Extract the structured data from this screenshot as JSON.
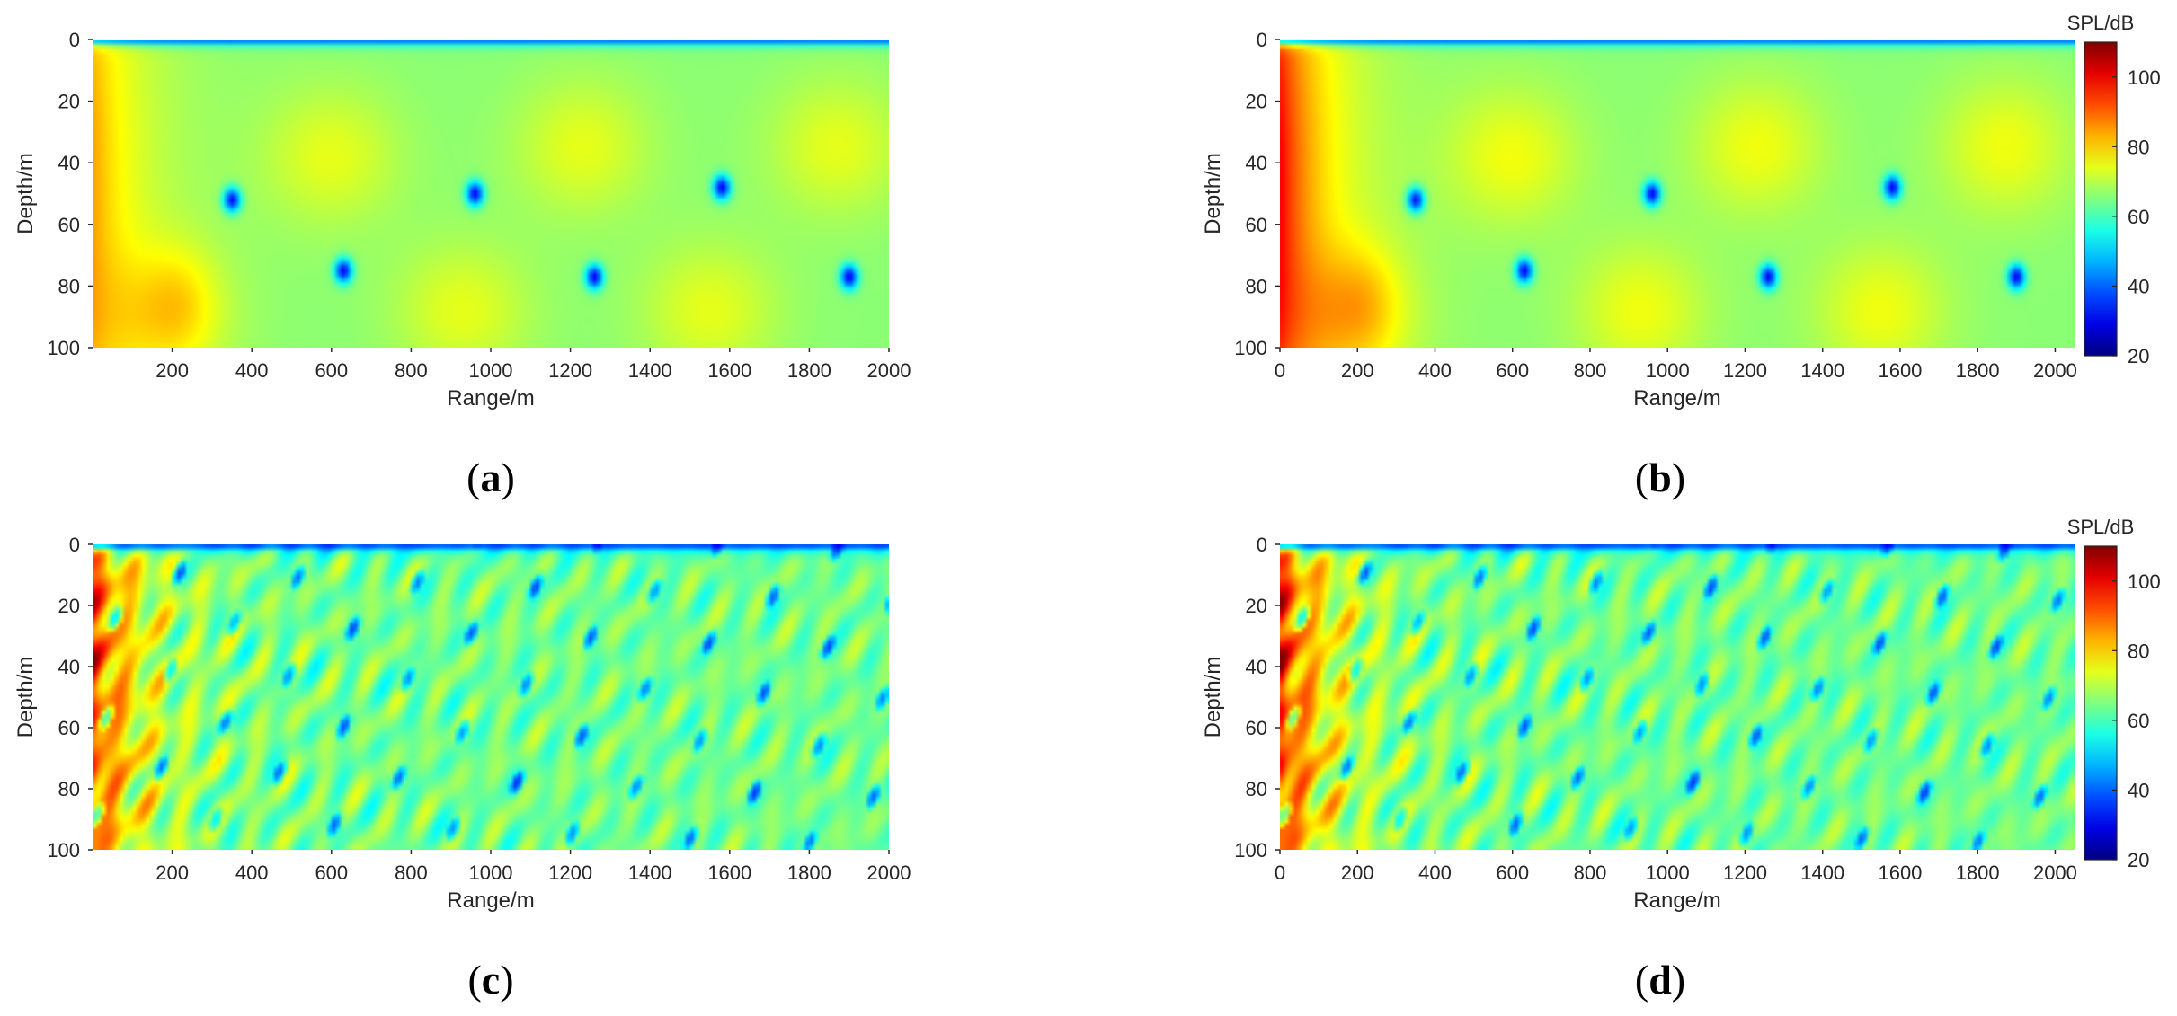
{
  "chart_data": [
    {
      "type": "heatmap",
      "panel": "a",
      "caption_open": "(",
      "caption_letter": "a",
      "caption_close": ")",
      "xlabel": "Range/m",
      "ylabel": "Depth/m",
      "xlim": [
        0,
        2000
      ],
      "ylim": [
        0,
        100
      ],
      "y_reversed": true,
      "xticks": [
        "200",
        "400",
        "600",
        "800",
        "1000",
        "1200",
        "1400",
        "1600",
        "1800",
        "2000"
      ],
      "yticks": [
        "0",
        "20",
        "40",
        "60",
        "80",
        "100"
      ],
      "colorbar": false,
      "pattern": "smooth",
      "summary_values_dB": {
        "near_source_max": 85,
        "background": 66,
        "high_lobes": 74,
        "nulls": 30,
        "surface": 25
      },
      "high_lobes": [
        {
          "range": 600,
          "depth": 38
        },
        {
          "range": 1230,
          "depth": 35
        },
        {
          "range": 1870,
          "depth": 35
        },
        {
          "range": 930,
          "depth": 88
        },
        {
          "range": 1550,
          "depth": 88
        },
        {
          "range": 170,
          "depth": 90
        }
      ],
      "nulls": [
        {
          "range": 960,
          "depth": 50
        },
        {
          "range": 1580,
          "depth": 48
        },
        {
          "range": 630,
          "depth": 75
        },
        {
          "range": 1260,
          "depth": 77
        },
        {
          "range": 1900,
          "depth": 77
        },
        {
          "range": 350,
          "depth": 52
        }
      ]
    },
    {
      "type": "heatmap",
      "panel": "b",
      "caption_open": "(",
      "caption_letter": "b",
      "caption_close": ")",
      "xlabel": "Range/m",
      "ylabel": "Depth/m",
      "xlim": [
        0,
        2050
      ],
      "ylim": [
        0,
        100
      ],
      "y_reversed": true,
      "xticks": [
        "0",
        "200",
        "400",
        "600",
        "800",
        "1000",
        "1200",
        "1400",
        "1600",
        "1800",
        "2000"
      ],
      "yticks": [
        "0",
        "20",
        "40",
        "60",
        "80",
        "100"
      ],
      "colorbar": true,
      "colorbar_title": "SPL/dB",
      "colorbar_ticks": [
        "100",
        "80",
        "60",
        "40",
        "20"
      ],
      "clim": [
        20,
        110
      ],
      "pattern": "smooth",
      "summary_values_dB": {
        "near_source_max": 100,
        "background": 66,
        "high_lobes": 75,
        "nulls": 30,
        "surface": 25
      },
      "high_lobes": [
        {
          "range": 600,
          "depth": 38
        },
        {
          "range": 1230,
          "depth": 35
        },
        {
          "range": 1870,
          "depth": 35
        },
        {
          "range": 930,
          "depth": 88
        },
        {
          "range": 1550,
          "depth": 88
        },
        {
          "range": 170,
          "depth": 90
        }
      ],
      "nulls": [
        {
          "range": 960,
          "depth": 50
        },
        {
          "range": 1580,
          "depth": 48
        },
        {
          "range": 630,
          "depth": 75
        },
        {
          "range": 1260,
          "depth": 77
        },
        {
          "range": 1900,
          "depth": 77
        },
        {
          "range": 350,
          "depth": 52
        }
      ]
    },
    {
      "type": "heatmap",
      "panel": "c",
      "caption_open": "(",
      "caption_letter": "c",
      "caption_close": ")",
      "xlabel": "Range/m",
      "ylabel": "Depth/m",
      "xlim": [
        0,
        2000
      ],
      "ylim": [
        0,
        100
      ],
      "y_reversed": true,
      "xticks": [
        "200",
        "400",
        "600",
        "800",
        "1000",
        "1200",
        "1400",
        "1600",
        "1800",
        "2000"
      ],
      "yticks": [
        "0",
        "20",
        "40",
        "60",
        "80",
        "100"
      ],
      "colorbar": false,
      "pattern": "oscillatory",
      "summary_values_dB": {
        "near_source_max": 95,
        "background": 64,
        "nulls": 35
      }
    },
    {
      "type": "heatmap",
      "panel": "d",
      "caption_open": "(",
      "caption_letter": "d",
      "caption_close": ")",
      "xlabel": "Range/m",
      "ylabel": "Depth/m",
      "xlim": [
        0,
        2050
      ],
      "ylim": [
        0,
        100
      ],
      "y_reversed": true,
      "xticks": [
        "0",
        "200",
        "400",
        "600",
        "800",
        "1000",
        "1200",
        "1400",
        "1600",
        "1800",
        "2000"
      ],
      "yticks": [
        "0",
        "20",
        "40",
        "60",
        "80",
        "100"
      ],
      "colorbar": true,
      "colorbar_title": "SPL/dB",
      "colorbar_ticks": [
        "100",
        "80",
        "60",
        "40",
        "20"
      ],
      "clim": [
        20,
        110
      ],
      "pattern": "oscillatory",
      "summary_values_dB": {
        "near_source_max": 98,
        "background": 64,
        "nulls": 35
      }
    }
  ]
}
